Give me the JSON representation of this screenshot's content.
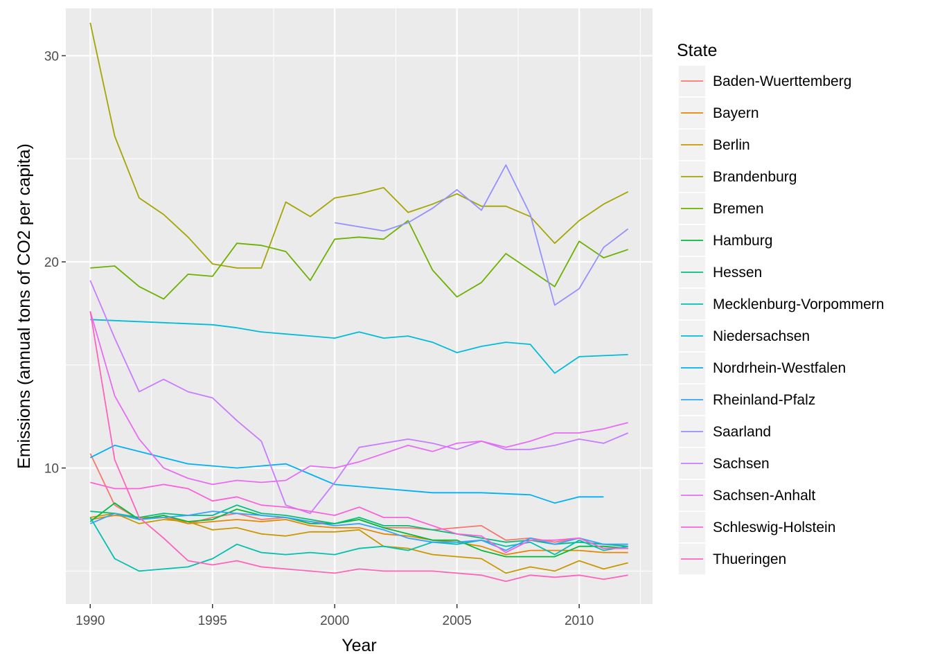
{
  "chart_data": {
    "type": "line",
    "xlabel": "Year",
    "ylabel": "Emissions (annual tons of CO2 per capita)",
    "legend_title": "State",
    "legend_position": "right",
    "grid": true,
    "xlim": [
      1989.0,
      2013.0
    ],
    "ylim": [
      3.4,
      32.3
    ],
    "x_ticks": [
      1990,
      1995,
      2000,
      2005,
      2010
    ],
    "x_tick_labels": [
      "1990",
      "1995",
      "2000",
      "2005",
      "2010"
    ],
    "y_ticks": [
      10,
      20,
      30
    ],
    "y_tick_labels": [
      "10",
      "20",
      "30"
    ],
    "series": [
      {
        "name": "Baden-Wuerttemberg",
        "color": "#F8766D",
        "x": [
          1990,
          1991,
          1992,
          1993,
          1994,
          1995,
          1996,
          1997,
          1998,
          1999,
          2000,
          2001,
          2002,
          2003,
          2004,
          2005,
          2006,
          2007,
          2008,
          2009,
          2010,
          2011,
          2012
        ],
        "y": [
          10.7,
          8.2,
          7.5,
          7.7,
          7.3,
          7.6,
          7.8,
          7.5,
          7.6,
          7.4,
          7.3,
          7.5,
          7.1,
          7.1,
          7.0,
          7.1,
          7.2,
          6.5,
          6.6,
          6.4,
          6.6,
          6.1,
          6.1
        ]
      },
      {
        "name": "Bayern",
        "color": "#E58700",
        "x": [
          1990,
          1991,
          1992,
          1993,
          1994,
          1995,
          1996,
          1997,
          1998,
          1999,
          2000,
          2001,
          2002,
          2003,
          2004,
          2005,
          2006,
          2007,
          2008,
          2009,
          2010,
          2011,
          2012
        ],
        "y": [
          7.5,
          7.7,
          7.6,
          7.6,
          7.3,
          7.4,
          7.5,
          7.4,
          7.5,
          7.2,
          7.1,
          7.1,
          6.8,
          6.7,
          6.5,
          6.4,
          6.2,
          5.8,
          6.0,
          6.0,
          6.0,
          5.9,
          5.9
        ]
      },
      {
        "name": "Berlin",
        "color": "#C99800",
        "x": [
          1990,
          1991,
          1992,
          1993,
          1994,
          1995,
          1996,
          1997,
          1998,
          1999,
          2000,
          2001,
          2002,
          2003,
          2004,
          2005,
          2006,
          2007,
          2008,
          2009,
          2010,
          2011,
          2012
        ],
        "y": [
          7.6,
          7.8,
          7.3,
          7.5,
          7.4,
          7.0,
          7.1,
          6.8,
          6.7,
          6.9,
          6.9,
          7.0,
          6.2,
          6.1,
          5.8,
          5.7,
          5.6,
          4.9,
          5.2,
          5.0,
          5.5,
          5.1,
          5.4
        ]
      },
      {
        "name": "Brandenburg",
        "color": "#A3A500",
        "x": [
          1990,
          1991,
          1992,
          1993,
          1994,
          1995,
          1996,
          1997,
          1998,
          1999,
          2000,
          2001,
          2002,
          2003,
          2004,
          2005,
          2006,
          2007,
          2008,
          2009,
          2010,
          2011,
          2012
        ],
        "y": [
          31.6,
          26.1,
          23.1,
          22.3,
          21.2,
          19.9,
          19.7,
          19.7,
          22.9,
          22.2,
          23.1,
          23.3,
          23.6,
          22.4,
          22.8,
          23.3,
          22.7,
          22.7,
          22.2,
          20.9,
          22.0,
          22.8,
          23.4
        ]
      },
      {
        "name": "Bremen",
        "color": "#6BB100",
        "x": [
          1990,
          1991,
          1992,
          1993,
          1994,
          1995,
          1996,
          1997,
          1998,
          1999,
          2000,
          2001,
          2002,
          2003,
          2004,
          2005,
          2006,
          2007,
          2008,
          2009,
          2010,
          2011,
          2012
        ],
        "y": [
          19.7,
          19.8,
          18.8,
          18.2,
          19.4,
          19.3,
          20.9,
          20.8,
          20.5,
          19.1,
          21.1,
          21.2,
          21.1,
          22.0,
          19.6,
          18.3,
          19.0,
          20.4,
          19.6,
          18.8,
          21.0,
          20.2,
          20.6
        ]
      },
      {
        "name": "Hamburg",
        "color": "#00BA38",
        "x": [
          1990,
          1991,
          1992,
          1993,
          1994,
          1995,
          1996,
          1997,
          1998,
          1999,
          2000,
          2001,
          2002,
          2003,
          2004,
          2005,
          2006,
          2007,
          2008,
          2009,
          2010,
          2011,
          2012
        ],
        "y": [
          7.4,
          8.3,
          7.5,
          7.7,
          7.4,
          7.5,
          8.0,
          7.7,
          7.6,
          7.3,
          7.3,
          7.5,
          7.1,
          6.8,
          6.5,
          6.5,
          6.0,
          5.7,
          5.7,
          5.7,
          6.2,
          6.2,
          6.1
        ]
      },
      {
        "name": "Hessen",
        "color": "#00BF7D",
        "x": [
          1990,
          1991,
          1992,
          1993,
          1994,
          1995,
          1996,
          1997,
          1998,
          1999,
          2000,
          2001,
          2002,
          2003,
          2004,
          2005,
          2006,
          2007,
          2008,
          2009,
          2010,
          2011,
          2012
        ],
        "y": [
          7.9,
          7.8,
          7.6,
          7.8,
          7.7,
          7.7,
          8.2,
          7.8,
          7.7,
          7.5,
          7.3,
          7.6,
          7.2,
          7.2,
          7.0,
          6.8,
          6.6,
          6.4,
          6.5,
          6.3,
          6.4,
          6.3,
          6.2
        ]
      },
      {
        "name": "Mecklenburg-Vorpommern",
        "color": "#00C0AF",
        "x": [
          1990,
          1991,
          1992,
          1993,
          1994,
          1995,
          1996,
          1997,
          1998,
          1999,
          2000,
          2001,
          2002,
          2003,
          2004,
          2005,
          2006,
          2007,
          2008,
          2009,
          2010,
          2011,
          2012
        ],
        "y": [
          7.6,
          5.6,
          5.0,
          5.1,
          5.2,
          5.6,
          6.3,
          5.9,
          5.8,
          5.9,
          5.8,
          6.1,
          6.2,
          6.0,
          6.4,
          6.3,
          6.5,
          6.2,
          6.4,
          5.8,
          6.5,
          6.0,
          6.2
        ]
      },
      {
        "name": "Niedersachsen",
        "color": "#00BCD8",
        "x": [
          1990,
          1991,
          1992,
          1993,
          1994,
          1995,
          1996,
          1997,
          1998,
          1999,
          2000,
          2001,
          2002,
          2003,
          2004,
          2005,
          2006,
          2007,
          2008,
          2009,
          2010,
          2011,
          2012
        ],
        "y": [
          17.2,
          17.15,
          17.1,
          17.05,
          17.0,
          16.95,
          16.8,
          16.6,
          16.5,
          16.4,
          16.3,
          16.6,
          16.3,
          16.4,
          16.1,
          15.6,
          15.9,
          16.1,
          16.0,
          14.6,
          15.4,
          15.45,
          15.5
        ]
      },
      {
        "name": "Nordrhein-Westfalen",
        "color": "#00B0F6",
        "x": [
          1990,
          1991,
          1992,
          1993,
          1994,
          1995,
          1996,
          1997,
          1998,
          1999,
          2000,
          2001,
          2002,
          2003,
          2004,
          2005,
          2006,
          2007,
          2008,
          2009,
          2010,
          2011
        ],
        "y": [
          10.5,
          11.1,
          10.8,
          10.5,
          10.2,
          10.1,
          10.0,
          10.1,
          10.2,
          9.7,
          9.2,
          9.1,
          9.0,
          8.9,
          8.8,
          8.8,
          8.8,
          8.75,
          8.7,
          8.3,
          8.6,
          8.6
        ]
      },
      {
        "name": "Rheinland-Pfalz",
        "color": "#35A2FF",
        "x": [
          1990,
          1991,
          1992,
          1993,
          1994,
          1995,
          1996,
          1997,
          1998,
          1999,
          2000,
          2001,
          2002,
          2003,
          2004,
          2005,
          2006,
          2007,
          2008,
          2009,
          2010,
          2011,
          2012
        ],
        "y": [
          7.3,
          7.8,
          7.5,
          7.6,
          7.7,
          7.9,
          7.8,
          7.7,
          7.6,
          7.4,
          7.2,
          7.3,
          7.0,
          6.6,
          6.4,
          6.4,
          6.5,
          6.0,
          6.6,
          6.3,
          6.6,
          6.3,
          6.3
        ]
      },
      {
        "name": "Saarland",
        "color": "#9590FF",
        "x": [
          2000,
          2001,
          2002,
          2003,
          2004,
          2005,
          2006,
          2007,
          2008,
          2009,
          2010,
          2011,
          2012
        ],
        "y": [
          21.9,
          21.7,
          21.5,
          21.9,
          22.6,
          23.5,
          22.5,
          24.7,
          22.3,
          17.9,
          18.7,
          20.7,
          21.6
        ]
      },
      {
        "name": "Sachsen",
        "color": "#C77CFF",
        "x": [
          1990,
          1991,
          1992,
          1993,
          1994,
          1995,
          1996,
          1997,
          1998,
          1999,
          2000,
          2001,
          2002,
          2003,
          2004,
          2005,
          2006,
          2007,
          2008,
          2009,
          2010,
          2011,
          2012
        ],
        "y": [
          19.1,
          16.3,
          13.7,
          14.3,
          13.7,
          13.4,
          12.3,
          11.3,
          8.2,
          7.8,
          9.3,
          11.0,
          11.2,
          11.4,
          11.2,
          10.9,
          11.3,
          10.9,
          10.9,
          11.1,
          11.4,
          11.2,
          11.7
        ]
      },
      {
        "name": "Sachsen-Anhalt",
        "color": "#E76BF3",
        "x": [
          1990,
          1991,
          1992,
          1993,
          1994,
          1995,
          1996,
          1997,
          1998,
          1999,
          2000,
          2001,
          2002,
          2003,
          2004,
          2005,
          2006,
          2007,
          2008,
          2009,
          2010,
          2011,
          2012
        ],
        "y": [
          17.6,
          13.5,
          11.4,
          10.0,
          9.5,
          9.2,
          9.4,
          9.3,
          9.4,
          10.1,
          10.0,
          10.3,
          10.7,
          11.1,
          10.8,
          11.2,
          11.3,
          11.0,
          11.3,
          11.7,
          11.7,
          11.9,
          12.2
        ]
      },
      {
        "name": "Schleswig-Holstein",
        "color": "#FA62DB",
        "x": [
          1990,
          1991,
          1992,
          1993,
          1994,
          1995,
          1996,
          1997,
          1998,
          1999,
          2000,
          2001,
          2002,
          2003,
          2004,
          2005,
          2006,
          2007,
          2008,
          2009,
          2010,
          2011,
          2012
        ],
        "y": [
          9.3,
          9.0,
          9.0,
          9.2,
          9.0,
          8.4,
          8.6,
          8.2,
          8.1,
          7.9,
          7.7,
          8.1,
          7.6,
          7.6,
          7.2,
          6.8,
          6.7,
          5.9,
          6.5,
          6.5,
          6.6,
          6.1,
          6.1
        ]
      },
      {
        "name": "Thueringen",
        "color": "#FF62BC",
        "x": [
          1990,
          1991,
          1992,
          1993,
          1994,
          1995,
          1996,
          1997,
          1998,
          1999,
          2000,
          2001,
          2002,
          2003,
          2004,
          2005,
          2006,
          2007,
          2008,
          2009,
          2010,
          2011,
          2012
        ],
        "y": [
          17.6,
          10.4,
          7.6,
          6.6,
          5.5,
          5.3,
          5.5,
          5.2,
          5.1,
          5.0,
          4.9,
          5.1,
          5.0,
          5.0,
          5.0,
          4.9,
          4.8,
          4.5,
          4.8,
          4.7,
          4.8,
          4.6,
          4.8
        ]
      }
    ]
  }
}
